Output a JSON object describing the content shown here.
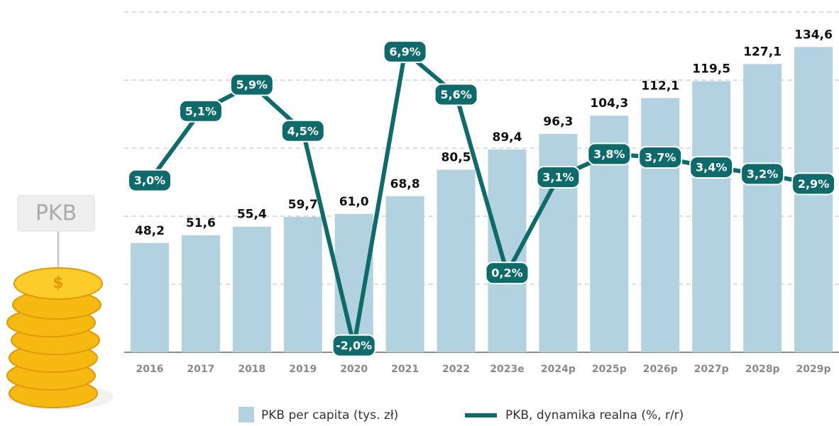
{
  "sign_label": "PKB",
  "chart_data": {
    "type": "bar-line",
    "categories": [
      "2016",
      "2017",
      "2018",
      "2019",
      "2020",
      "2021",
      "2022",
      "2023e",
      "2024p",
      "2025p",
      "2026p",
      "2027p",
      "2028p",
      "2029p"
    ],
    "series": [
      {
        "name": "PKB per capita (tys. zł)",
        "type": "bar",
        "color": "#b3d2df",
        "values": [
          48.2,
          51.6,
          55.4,
          59.7,
          61.0,
          68.8,
          80.5,
          89.4,
          96.3,
          104.3,
          112.1,
          119.5,
          127.1,
          134.6
        ],
        "value_labels": [
          "48,2",
          "51,6",
          "55,4",
          "59,7",
          "61,0",
          "68,8",
          "80,5",
          "89,4",
          "96,3",
          "104,3",
          "112,1",
          "119,5",
          "127,1",
          "134,6"
        ]
      },
      {
        "name": "PKB, dynamika realna (%, r/r)",
        "type": "line",
        "axis": "y2",
        "color": "#0f6b6b",
        "values": [
          3.0,
          5.1,
          5.9,
          4.5,
          -2.0,
          6.9,
          5.6,
          0.2,
          3.1,
          3.8,
          3.7,
          3.4,
          3.2,
          2.9
        ],
        "value_labels": [
          "3,0%",
          "5,1%",
          "5,9%",
          "4,5%",
          "-2,0%",
          "6,9%",
          "5,6%",
          "0,2%",
          "3,1%",
          "3,8%",
          "3,7%",
          "3,4%",
          "3,2%",
          "2,9%"
        ]
      }
    ],
    "ylim": [
      0,
      150
    ],
    "yticks": [
      0,
      30,
      60,
      90,
      120,
      150
    ],
    "y2lim": [
      -2.2,
      8.1
    ],
    "grid": true
  }
}
